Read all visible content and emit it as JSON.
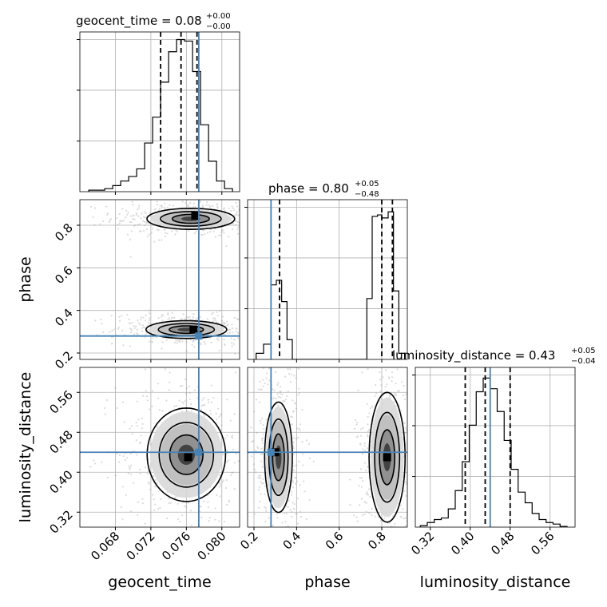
{
  "chart_data": {
    "type": "corner",
    "parameters": [
      {
        "key": "geocent_time",
        "label": "geocent_time",
        "title": "geocent_time = 0.08",
        "title_plus": "+0.00",
        "title_minus": "−0.00",
        "range": [
          0.064,
          0.082
        ],
        "ticks": [
          "0.068",
          "0.072",
          "0.076",
          "0.080"
        ],
        "tick_values": [
          0.068,
          0.072,
          0.076,
          0.08
        ],
        "quantiles": [
          0.0731,
          0.0754,
          0.0772
        ],
        "truth": 0.0774,
        "hist": {
          "bin_edges": [
            0.065,
            0.0659,
            0.0668,
            0.0677,
            0.0686,
            0.0695,
            0.0704,
            0.0713,
            0.0722,
            0.0731,
            0.074,
            0.0749,
            0.0758,
            0.0767,
            0.0776,
            0.0785,
            0.0794,
            0.0803,
            0.0812
          ],
          "counts": [
            0.01,
            0.01,
            0.02,
            0.04,
            0.07,
            0.1,
            0.15,
            0.32,
            0.49,
            0.72,
            0.92,
            1.0,
            0.99,
            0.79,
            0.44,
            0.2,
            0.07,
            0.02
          ]
        }
      },
      {
        "key": "phase",
        "label": "phase",
        "title": "phase = 0.80",
        "title_plus": "+0.05",
        "title_minus": "−0.48",
        "range": [
          0.17,
          0.92
        ],
        "ticks": [
          "0.2",
          "0.4",
          "0.6",
          "0.8"
        ],
        "tick_values": [
          0.2,
          0.4,
          0.6,
          0.8
        ],
        "quantiles": [
          0.32,
          0.8,
          0.85
        ],
        "truth": 0.28,
        "hist": {
          "bin_edges": [
            0.21,
            0.245,
            0.28,
            0.305,
            0.33,
            0.355,
            0.38,
            0.73,
            0.755,
            0.78,
            0.8,
            0.83,
            0.855,
            0.88,
            0.91
          ],
          "counts": [
            0.04,
            0.1,
            0.49,
            0.52,
            0.38,
            0.13,
            0.0,
            0.4,
            0.94,
            0.95,
            0.93,
            0.97,
            0.45,
            0.04
          ]
        }
      },
      {
        "key": "luminosity_distance",
        "label": "luminosity_distance",
        "title": "luminosity_distance = 0.43",
        "title_plus": "+0.05",
        "title_minus": "−0.04",
        "range": [
          0.29,
          0.61
        ],
        "ticks": [
          "0.32",
          "0.40",
          "0.48",
          "0.56"
        ],
        "tick_values": [
          0.32,
          0.4,
          0.48,
          0.56
        ],
        "quantiles": [
          0.39,
          0.43,
          0.48
        ],
        "truth": 0.44,
        "hist": {
          "bin_edges": [
            0.3,
            0.314,
            0.328,
            0.342,
            0.356,
            0.37,
            0.384,
            0.398,
            0.412,
            0.426,
            0.44,
            0.454,
            0.468,
            0.482,
            0.496,
            0.51,
            0.524,
            0.538,
            0.552,
            0.566,
            0.58,
            0.594
          ],
          "counts": [
            0.01,
            0.03,
            0.05,
            0.06,
            0.12,
            0.24,
            0.43,
            0.67,
            0.89,
            0.98,
            0.91,
            0.76,
            0.57,
            0.38,
            0.23,
            0.16,
            0.09,
            0.05,
            0.03,
            0.02,
            0.005
          ]
        }
      }
    ],
    "pairs": [
      {
        "x": "geocent_time",
        "y": "phase",
        "modes": [
          {
            "center": [
              0.0765,
              0.83
            ],
            "radii": [
              0.0038,
              0.038
            ],
            "tilt": -0.06,
            "peak": [
              0.077,
              0.845
            ]
          },
          {
            "center": [
              0.076,
              0.31
            ],
            "radii": [
              0.0035,
              0.032
            ],
            "tilt": -0.06,
            "peak": [
              0.0768,
              0.31
            ]
          }
        ]
      },
      {
        "x": "geocent_time",
        "y": "luminosity_distance",
        "modes": [
          {
            "center": [
              0.076,
              0.435
            ],
            "radii": [
              0.0034,
              0.072
            ],
            "tilt": 0.0,
            "peak": [
              0.0762,
              0.43
            ]
          }
        ]
      },
      {
        "x": "phase",
        "y": "luminosity_distance",
        "modes": [
          {
            "center": [
              0.315,
              0.43
            ],
            "radii": [
              0.05,
              0.085
            ],
            "tilt": 0.0,
            "peak": [
              0.3,
              0.44
            ]
          },
          {
            "center": [
              0.825,
              0.43
            ],
            "radii": [
              0.065,
              0.1
            ],
            "tilt": 0.0,
            "peak": [
              0.825,
              0.43
            ]
          }
        ]
      }
    ],
    "colors": {
      "truth": "#4682b4",
      "line": "#000000",
      "grid": "#b0b0b0",
      "scatter": "#9e9e9e"
    },
    "grid": true,
    "legend": "none"
  }
}
